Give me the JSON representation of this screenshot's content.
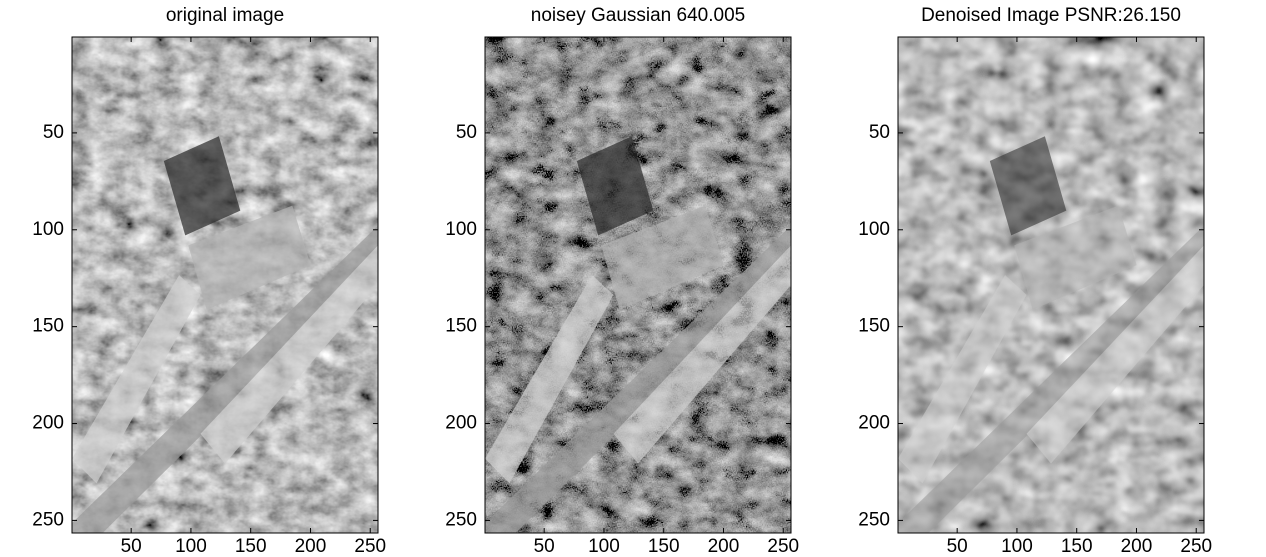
{
  "chart_data": [
    {
      "type": "image",
      "title": "original image",
      "xlim": [
        0.5,
        256.5
      ],
      "ylim": [
        0.5,
        256.5
      ],
      "y_reversed": true,
      "xticks": [
        50,
        100,
        150,
        200,
        250
      ],
      "yticks": [
        50,
        100,
        150,
        200,
        250
      ]
    },
    {
      "type": "image",
      "title": "noisey Gaussian 640.005",
      "xlim": [
        0.5,
        256.5
      ],
      "ylim": [
        0.5,
        256.5
      ],
      "y_reversed": true,
      "xticks": [
        50,
        100,
        150,
        200,
        250
      ],
      "yticks": [
        50,
        100,
        150,
        200,
        250
      ]
    },
    {
      "type": "image",
      "title": "Denoised Image PSNR:26.150",
      "xlim": [
        0.5,
        256.5
      ],
      "ylim": [
        0.5,
        256.5
      ],
      "y_reversed": true,
      "xticks": [
        50,
        100,
        150,
        200,
        250
      ],
      "yticks": [
        50,
        100,
        150,
        200,
        250
      ]
    }
  ]
}
